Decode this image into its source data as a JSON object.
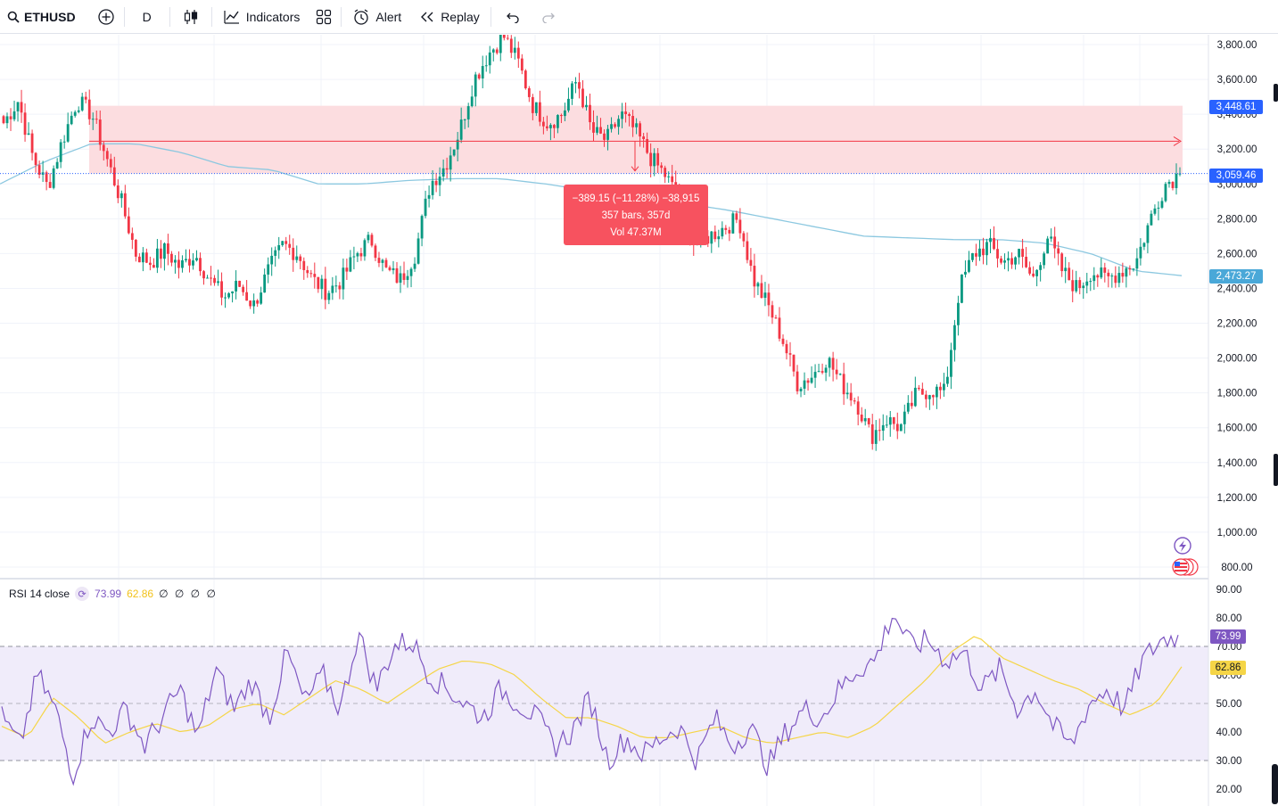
{
  "toolbar": {
    "symbol": "ETHUSD",
    "interval": "D",
    "indicators_label": "Indicators",
    "alert_label": "Alert",
    "replay_label": "Replay"
  },
  "measure": {
    "line1": "−389.15 (−11.28%) −38,915",
    "line2": "357 bars, 357d",
    "line3": "Vol 47.37M"
  },
  "price_tags": {
    "zone_top": "3,448.61",
    "last_price": "3,059.46",
    "ma_price": "2,473.27"
  },
  "rsi_legend": {
    "title": "RSI 14 close",
    "rsi_value": "73.99",
    "ma_value": "62.86",
    "extras": "∅ ∅ ∅ ∅"
  },
  "rsi_tags": {
    "rsi": "73.99",
    "ma": "62.86"
  },
  "colors": {
    "up": "#089981",
    "down": "#f23645",
    "ma_line": "#8cc8e0",
    "rsi_line": "#7e57c2",
    "rsi_ma": "#f5d547",
    "zone": "#f7a8b0",
    "tooltip": "#f7525f"
  },
  "chart_data": {
    "type": "candlestick",
    "price_axis": {
      "ticks": [
        "3,800.00",
        "3,600.00",
        "3,400.00",
        "3,200.00",
        "3,000.00",
        "2,800.00",
        "2,600.00",
        "2,400.00",
        "2,200.00",
        "2,000.00",
        "1,800.00",
        "1,600.00",
        "1,400.00",
        "1,200.00",
        "1,000.00",
        "800.00"
      ],
      "ylim": [
        800,
        3800
      ]
    },
    "rsi_axis": {
      "ticks": [
        "90.00",
        "80.00",
        "70.00",
        "60.00",
        "50.00",
        "40.00",
        "30.00",
        "20.00"
      ],
      "ylim": [
        20,
        90
      ],
      "bands": [
        30,
        50,
        70
      ]
    },
    "zone": {
      "top": 3448.61,
      "bottom": 3059.46
    },
    "close_anchors": [
      3350,
      3480,
      3150,
      2980,
      3250,
      3480,
      3400,
      3150,
      2900,
      2600,
      2550,
      2620,
      2520,
      2600,
      2450,
      2350,
      2420,
      2300,
      2500,
      2650,
      2600,
      2450,
      2380,
      2450,
      2600,
      2680,
      2500,
      2450,
      2600,
      3000,
      3100,
      3300,
      3600,
      3750,
      3850,
      3700,
      3450,
      3350,
      3400,
      3600,
      3300,
      3250,
      3400,
      3300,
      3150,
      3050,
      2900,
      2650,
      2700,
      2750,
      2800,
      2450,
      2300,
      2100,
      1850,
      1900,
      2000,
      1850,
      1750,
      1550,
      1650,
      1600,
      1780,
      1820,
      1800,
      2400,
      2600,
      2650,
      2550,
      2600,
      2450,
      2700,
      2500,
      2400,
      2500,
      2450,
      2500,
      2550,
      2800,
      3000,
      3059.46
    ],
    "ma_anchors": [
      3000,
      3130,
      3230,
      3230,
      3180,
      3100,
      3080,
      3000,
      3000,
      3020,
      3030,
      3030,
      3000,
      2960,
      2950,
      2890,
      2850,
      2800,
      2750,
      2700,
      2690,
      2680,
      2680,
      2660,
      2600,
      2500,
      2473.27
    ],
    "rsi_anchors": [
      45,
      35,
      60,
      48,
      25,
      45,
      40,
      48,
      35,
      45,
      55,
      38,
      62,
      48,
      58,
      45,
      68,
      50,
      60,
      48,
      75,
      55,
      70,
      72,
      60,
      55,
      50,
      45,
      55,
      50,
      45,
      35,
      40,
      52,
      30,
      38,
      32,
      38,
      42,
      30,
      45,
      35,
      42,
      28,
      40,
      48,
      45,
      55,
      62,
      65,
      82,
      70,
      72,
      65,
      68,
      55,
      62,
      48,
      55,
      42,
      35,
      50,
      55,
      48,
      65,
      72,
      73.99
    ],
    "rsi_ma_anchors": [
      42,
      38,
      52,
      45,
      36,
      40,
      43,
      40,
      42,
      48,
      50,
      46,
      52,
      58,
      55,
      50,
      56,
      62,
      65,
      64,
      60,
      52,
      45,
      45,
      42,
      38,
      38,
      40,
      42,
      38,
      36,
      38,
      40,
      38,
      42,
      50,
      58,
      68,
      74,
      66,
      62,
      58,
      55,
      50,
      46,
      50,
      62.86
    ]
  }
}
